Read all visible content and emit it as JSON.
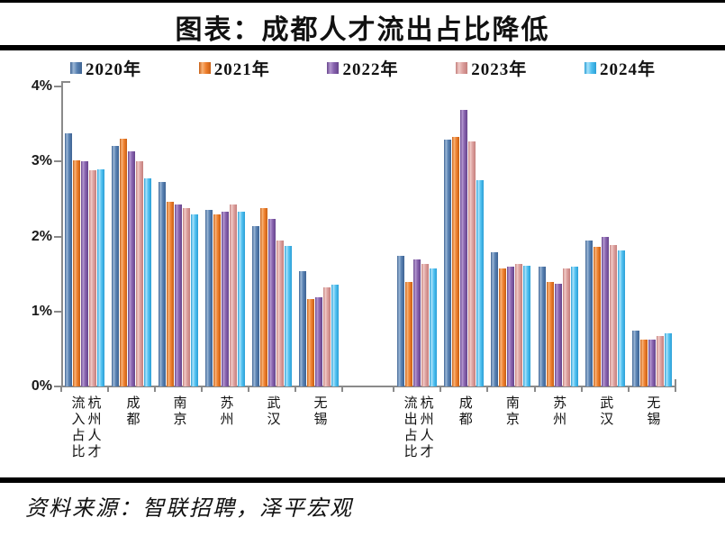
{
  "title": "图表：成都人才流出占比降低",
  "source_note": "资料来源：智联招聘，泽平宏观",
  "chart_data": {
    "type": "bar",
    "title": "图表：成都人才流出占比降低",
    "ylim": [
      0,
      4
    ],
    "yticks": [
      "0%",
      "1%",
      "2%",
      "3%",
      "4%"
    ],
    "grid": "off",
    "legend_position": "top",
    "series_names": [
      "2020年",
      "2021年",
      "2022年",
      "2023年",
      "2024年"
    ],
    "series_colors": [
      {
        "name": "2020年",
        "base": "#567fb0",
        "light": "#9ab6d6",
        "dark": "#3f6493"
      },
      {
        "name": "2021年",
        "base": "#ee7f2d",
        "light": "#f8b277",
        "dark": "#c75f15"
      },
      {
        "name": "2022年",
        "base": "#8661ad",
        "light": "#b397cf",
        "dark": "#67458c"
      },
      {
        "name": "2023年",
        "base": "#dc9f9d",
        "light": "#f0cac7",
        "dark": "#c47f7c"
      },
      {
        "name": "2024年",
        "base": "#4fc0f0",
        "light": "#a9e2fa",
        "dark": "#2b9fd6"
      }
    ],
    "panels": [
      {
        "group": "流入占比",
        "clusters": [
          {
            "label_cols": [
              "流入占比",
              "杭州人才"
            ],
            "category": "杭州人才流入占比",
            "values": [
              3.38,
              3.02,
              3.0,
              2.88,
              2.89
            ]
          },
          {
            "label_cols": [
              "成都"
            ],
            "category": "成都",
            "values": [
              3.21,
              3.3,
              3.13,
              3.0,
              2.77
            ]
          },
          {
            "label_cols": [
              "南京"
            ],
            "category": "南京",
            "values": [
              2.73,
              2.46,
              2.43,
              2.38,
              2.3
            ]
          },
          {
            "label_cols": [
              "苏州"
            ],
            "category": "苏州",
            "values": [
              2.35,
              2.3,
              2.33,
              2.43,
              2.33
            ]
          },
          {
            "label_cols": [
              "武汉"
            ],
            "category": "武汉",
            "values": [
              2.14,
              2.38,
              2.24,
              1.95,
              1.87
            ]
          },
          {
            "label_cols": [
              "无锡"
            ],
            "category": "无锡",
            "values": [
              1.54,
              1.17,
              1.19,
              1.32,
              1.36
            ]
          }
        ]
      },
      {
        "group": "流出占比",
        "clusters": [
          {
            "label_cols": [
              "流出占比",
              "杭州人才"
            ],
            "category": "杭州人才流出占比",
            "values": [
              1.74,
              1.39,
              1.69,
              1.63,
              1.58
            ]
          },
          {
            "label_cols": [
              "成都"
            ],
            "category": "成都",
            "values": [
              3.29,
              3.33,
              3.69,
              3.27,
              2.75
            ]
          },
          {
            "label_cols": [
              "南京"
            ],
            "category": "南京",
            "values": [
              1.79,
              1.57,
              1.6,
              1.64,
              1.61
            ]
          },
          {
            "label_cols": [
              "苏州"
            ],
            "category": "苏州",
            "values": [
              1.6,
              1.39,
              1.37,
              1.57,
              1.6
            ]
          },
          {
            "label_cols": [
              "武汉"
            ],
            "category": "武汉",
            "values": [
              1.95,
              1.86,
              2.0,
              1.89,
              1.81
            ]
          },
          {
            "label_cols": [
              "无锡"
            ],
            "category": "无锡",
            "values": [
              0.75,
              0.62,
              0.62,
              0.67,
              0.71
            ]
          }
        ]
      }
    ]
  }
}
